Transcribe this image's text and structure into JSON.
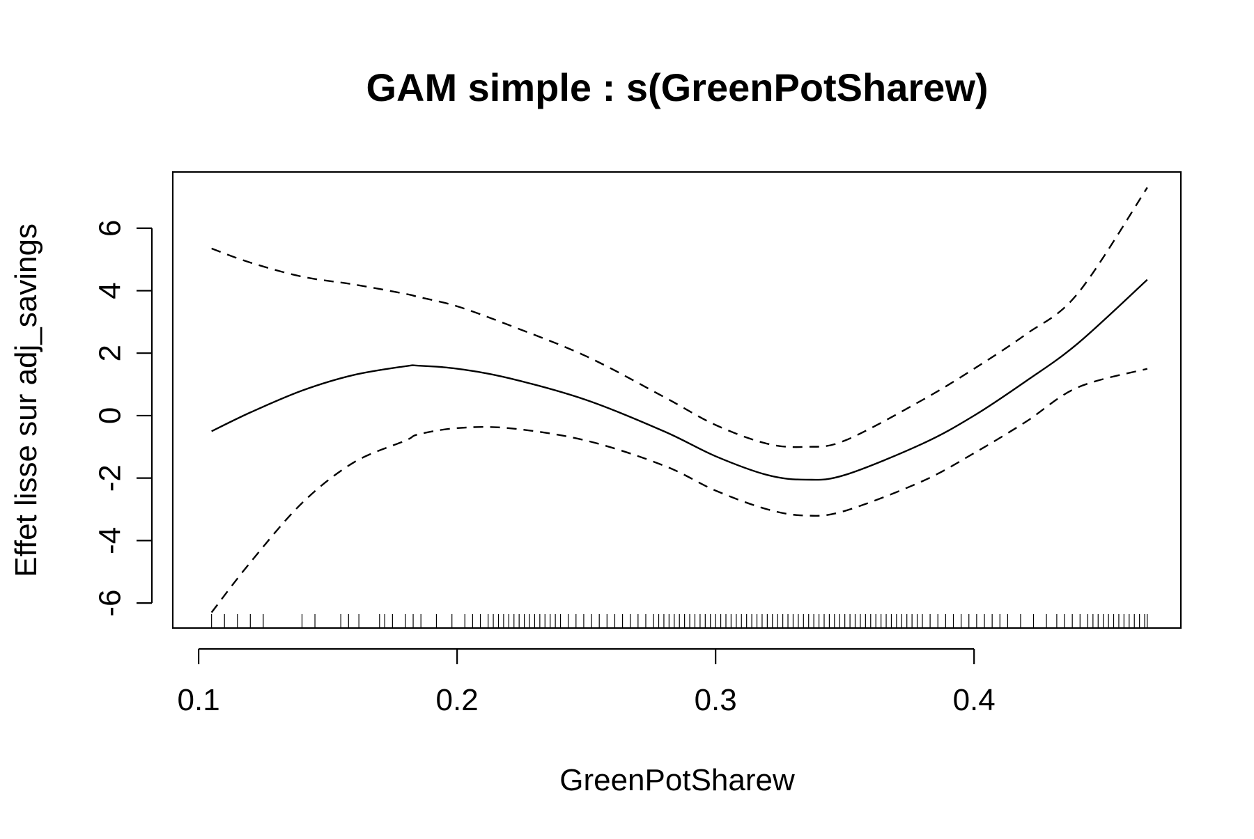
{
  "chart_data": {
    "type": "line",
    "title": "GAM simple : s(GreenPotSharew)",
    "xlabel": "GreenPotSharew",
    "ylabel": "Effet lisse sur adj_savings",
    "xlim": [
      0.09,
      0.48
    ],
    "ylim": [
      -6.8,
      7.8
    ],
    "x_ticks": [
      0.1,
      0.2,
      0.3,
      0.4
    ],
    "x_tick_labels": [
      "0.1",
      "0.2",
      "0.3",
      "0.4"
    ],
    "y_ticks": [
      -6,
      -4,
      -2,
      0,
      2,
      4,
      6
    ],
    "y_tick_labels": [
      "-6",
      "-4",
      "-2",
      "0",
      "2",
      "4",
      "6"
    ],
    "grid": false,
    "legend": "none",
    "x": [
      0.105,
      0.12,
      0.14,
      0.16,
      0.18,
      0.185,
      0.2,
      0.22,
      0.25,
      0.28,
      0.3,
      0.32,
      0.335,
      0.35,
      0.38,
      0.4,
      0.42,
      0.44,
      0.467
    ],
    "series": [
      {
        "role": "estimate",
        "style": "solid",
        "values": [
          -0.5,
          0.1,
          0.8,
          1.3,
          1.58,
          1.6,
          1.5,
          1.2,
          0.5,
          -0.5,
          -1.3,
          -1.9,
          -2.05,
          -1.9,
          -0.9,
          0.0,
          1.1,
          2.3,
          4.35
        ]
      },
      {
        "role": "upper",
        "style": "dashed",
        "values": [
          5.35,
          4.9,
          4.45,
          4.2,
          3.9,
          3.8,
          3.5,
          2.9,
          1.9,
          0.6,
          -0.3,
          -0.9,
          -1.0,
          -0.8,
          0.5,
          1.5,
          2.6,
          3.9,
          7.3
        ]
      },
      {
        "role": "lower",
        "style": "dashed",
        "values": [
          -6.3,
          -4.7,
          -2.8,
          -1.5,
          -0.8,
          -0.6,
          -0.4,
          -0.4,
          -0.8,
          -1.6,
          -2.4,
          -3.0,
          -3.2,
          -3.05,
          -2.1,
          -1.2,
          -0.2,
          0.9,
          1.5
        ]
      }
    ],
    "rug": [
      0.105,
      0.11,
      0.115,
      0.12,
      0.125,
      0.14,
      0.145,
      0.155,
      0.158,
      0.162,
      0.17,
      0.172,
      0.175,
      0.18,
      0.183,
      0.186,
      0.192,
      0.198,
      0.203,
      0.206,
      0.209,
      0.212,
      0.214,
      0.216,
      0.218,
      0.22,
      0.222,
      0.224,
      0.226,
      0.228,
      0.23,
      0.232,
      0.234,
      0.236,
      0.238,
      0.24,
      0.243,
      0.246,
      0.249,
      0.252,
      0.255,
      0.258,
      0.261,
      0.264,
      0.267,
      0.27,
      0.273,
      0.276,
      0.278,
      0.28,
      0.282,
      0.284,
      0.286,
      0.288,
      0.29,
      0.292,
      0.294,
      0.296,
      0.298,
      0.3,
      0.302,
      0.304,
      0.306,
      0.308,
      0.31,
      0.312,
      0.314,
      0.316,
      0.318,
      0.32,
      0.322,
      0.324,
      0.326,
      0.328,
      0.33,
      0.332,
      0.334,
      0.336,
      0.338,
      0.34,
      0.342,
      0.344,
      0.346,
      0.348,
      0.35,
      0.352,
      0.354,
      0.356,
      0.358,
      0.36,
      0.362,
      0.364,
      0.366,
      0.368,
      0.37,
      0.372,
      0.374,
      0.376,
      0.378,
      0.38,
      0.383,
      0.386,
      0.389,
      0.392,
      0.395,
      0.398,
      0.401,
      0.404,
      0.407,
      0.41,
      0.413,
      0.418,
      0.423,
      0.428,
      0.432,
      0.435,
      0.438,
      0.441,
      0.444,
      0.446,
      0.448,
      0.45,
      0.452,
      0.454,
      0.456,
      0.458,
      0.46,
      0.462,
      0.464,
      0.466,
      0.467
    ]
  }
}
